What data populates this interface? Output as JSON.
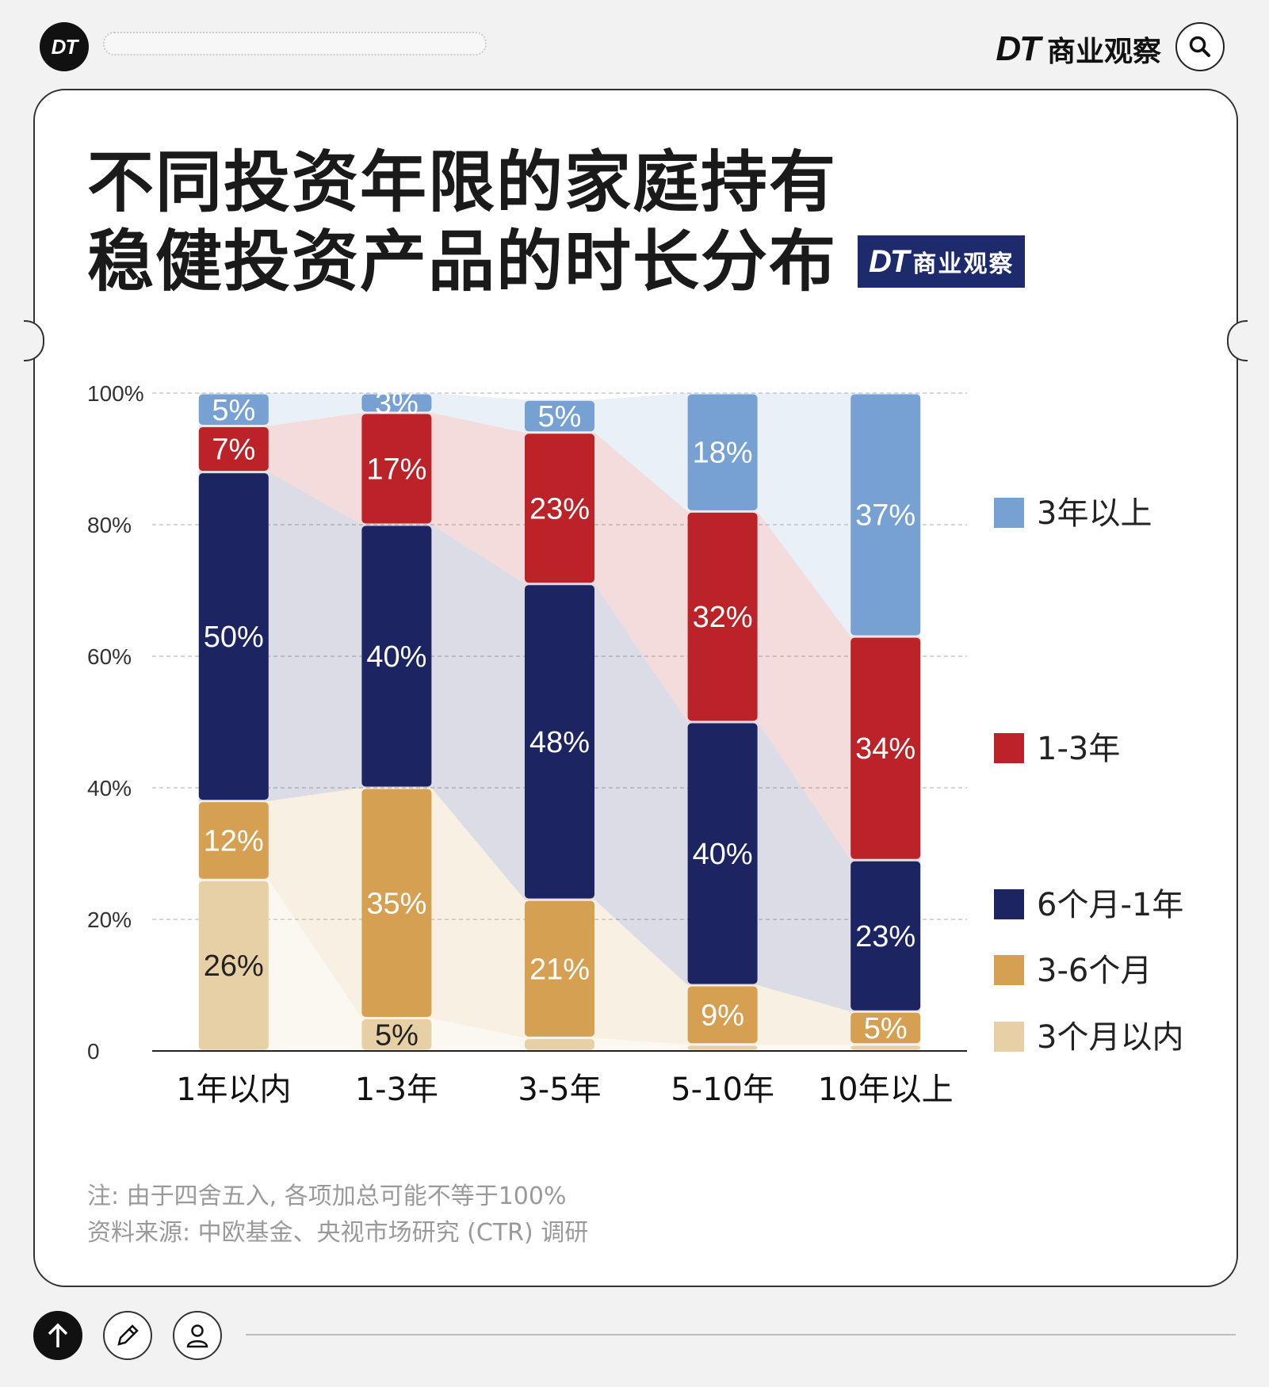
{
  "header": {
    "logo_text": "DT",
    "brand_dt": "DT",
    "brand_name": "商业观察",
    "search_icon": "search-icon"
  },
  "title": {
    "line1": "不同投资年限的家庭持有",
    "line2": "稳健投资产品的时长分布",
    "badge_dt": "DT",
    "badge_name": "商业观察"
  },
  "chart_data": {
    "type": "bar",
    "stacked": true,
    "categories": [
      "1年以内",
      "1-3年",
      "3-5年",
      "5-10年",
      "10年以上"
    ],
    "ylim": [
      0,
      100
    ],
    "yticks": [
      "0",
      "20%",
      "40%",
      "60%",
      "80%",
      "100%"
    ],
    "grid": true,
    "legend_position": "right",
    "series": [
      {
        "name": "3个月以内",
        "color": "#e8d0a6",
        "values": [
          26,
          5,
          2,
          1,
          1
        ],
        "labels": [
          "26%",
          "5%",
          "",
          "",
          ""
        ]
      },
      {
        "name": "3-6个月",
        "color": "#d6a052",
        "values": [
          12,
          35,
          21,
          9,
          5
        ],
        "labels": [
          "12%",
          "35%",
          "21%",
          "9%",
          "5%"
        ]
      },
      {
        "name": "6个月-1年",
        "color": "#1c2461",
        "values": [
          50,
          40,
          48,
          40,
          23
        ],
        "labels": [
          "50%",
          "40%",
          "48%",
          "40%",
          "23%"
        ]
      },
      {
        "name": "1-3年",
        "color": "#bb2328",
        "values": [
          7,
          17,
          23,
          32,
          34
        ],
        "labels": [
          "7%",
          "17%",
          "23%",
          "32%",
          "34%"
        ]
      },
      {
        "name": "3年以上",
        "color": "#77a1d3",
        "values": [
          5,
          3,
          5,
          18,
          37
        ],
        "labels": [
          "5%",
          "3%",
          "5%",
          "18%",
          "37%"
        ]
      }
    ],
    "legend_order": [
      "3年以上",
      "1-3年",
      "6个月-1年",
      "3-6个月",
      "3个月以内"
    ]
  },
  "notes": {
    "note1": "注: 由于四舍五入, 各项加总可能不等于100%",
    "note2": "资料来源: 中欧基金、央视市场研究 (CTR) 调研"
  },
  "footer": {
    "up_icon": "arrow-up-icon",
    "pen_icon": "pencil-icon",
    "user_icon": "user-icon"
  }
}
